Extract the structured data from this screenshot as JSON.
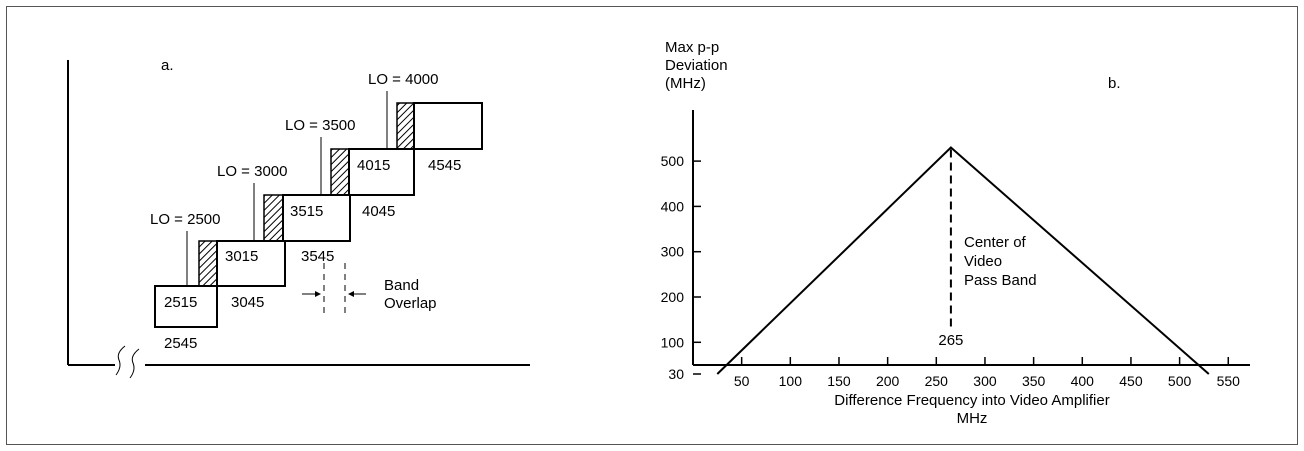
{
  "panel_a": {
    "label": "a.",
    "lo_labels": [
      "LO = 2500",
      "LO = 3000",
      "LO = 3500",
      "LO = 4000"
    ],
    "band_top_labels": [
      "2515",
      "3015",
      "3515",
      "4015"
    ],
    "band_bottom_labels": [
      "2545",
      "3045",
      "3545",
      "4045",
      "4545"
    ],
    "overlap_label_1": "Band",
    "overlap_label_2": "Overlap",
    "axis_break": "≈"
  },
  "panel_b": {
    "label": "b.",
    "ylabel_1": "Max p-p",
    "ylabel_2": "Deviation",
    "ylabel_3": "(MHz)",
    "xlabel_1": "Difference Frequency into Video Amplifier",
    "xlabel_2": "MHz",
    "center_1": "Center of",
    "center_2": "Video",
    "center_3": "Pass Band",
    "center_value": "265"
  },
  "chart_data": {
    "type": "line",
    "x": [
      25,
      265,
      530
    ],
    "series": [
      {
        "values": [
          30,
          530,
          30
        ]
      }
    ],
    "yticks": [
      30,
      100,
      200,
      300,
      400,
      500
    ],
    "xticks": [
      50,
      100,
      150,
      200,
      250,
      300,
      350,
      400,
      450,
      500,
      550
    ],
    "xlim": [
      0,
      560
    ],
    "ylim": [
      0,
      540
    ],
    "grid": false
  },
  "colors": {
    "line": "#000000",
    "frame": "#555555"
  }
}
